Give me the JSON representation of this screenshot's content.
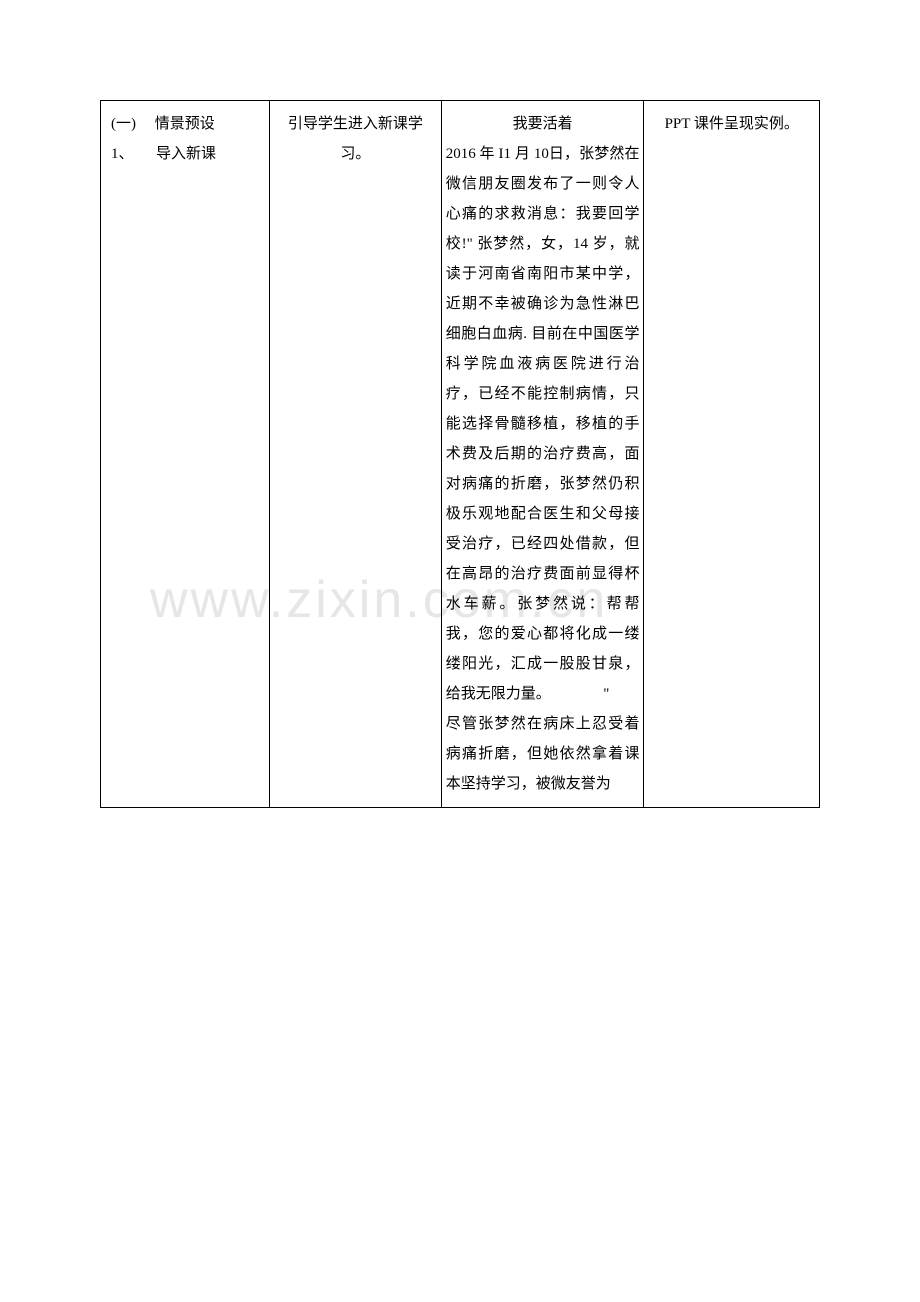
{
  "watermark": "www.zixin.com.cn",
  "table": {
    "col1": {
      "line1_left": "(一)",
      "line1_right": "情景预设",
      "line2_left": "1、",
      "line2_right": "导入新课"
    },
    "col2": "引导学生进入新课学习。",
    "col3": {
      "title": "我要活着",
      "body": "2016 年 I1 月 10日，张梦然在微信朋友圈发布了一则令人心痛的求救消息：我要回学校!\" 张梦然，女，14 岁，就读于河南省南阳市某中学，近期不幸被确诊为急性淋巴细胞白血病. 目前在中国医学科学院血液病医院进行治疗，已经不能控制病情，只能选择骨髓移植，移植的手术费及后期的治疗费高，面对病痛的折磨，张梦然仍积极乐观地配合医生和父母接受治疗，已经四处借款，但在高昂的治疗费面前显得杯水车薪。张梦然说：帮帮我，您的爱心都将化成一缕缕阳光，汇成一股股甘泉，给我无限力量。　　　　\"",
      "body2": "尽管张梦然在病床上忍受着病痛折磨，但她依然拿着课本坚持学习，被微友誉为"
    },
    "col4": "PPT 课件呈现实例。"
  }
}
